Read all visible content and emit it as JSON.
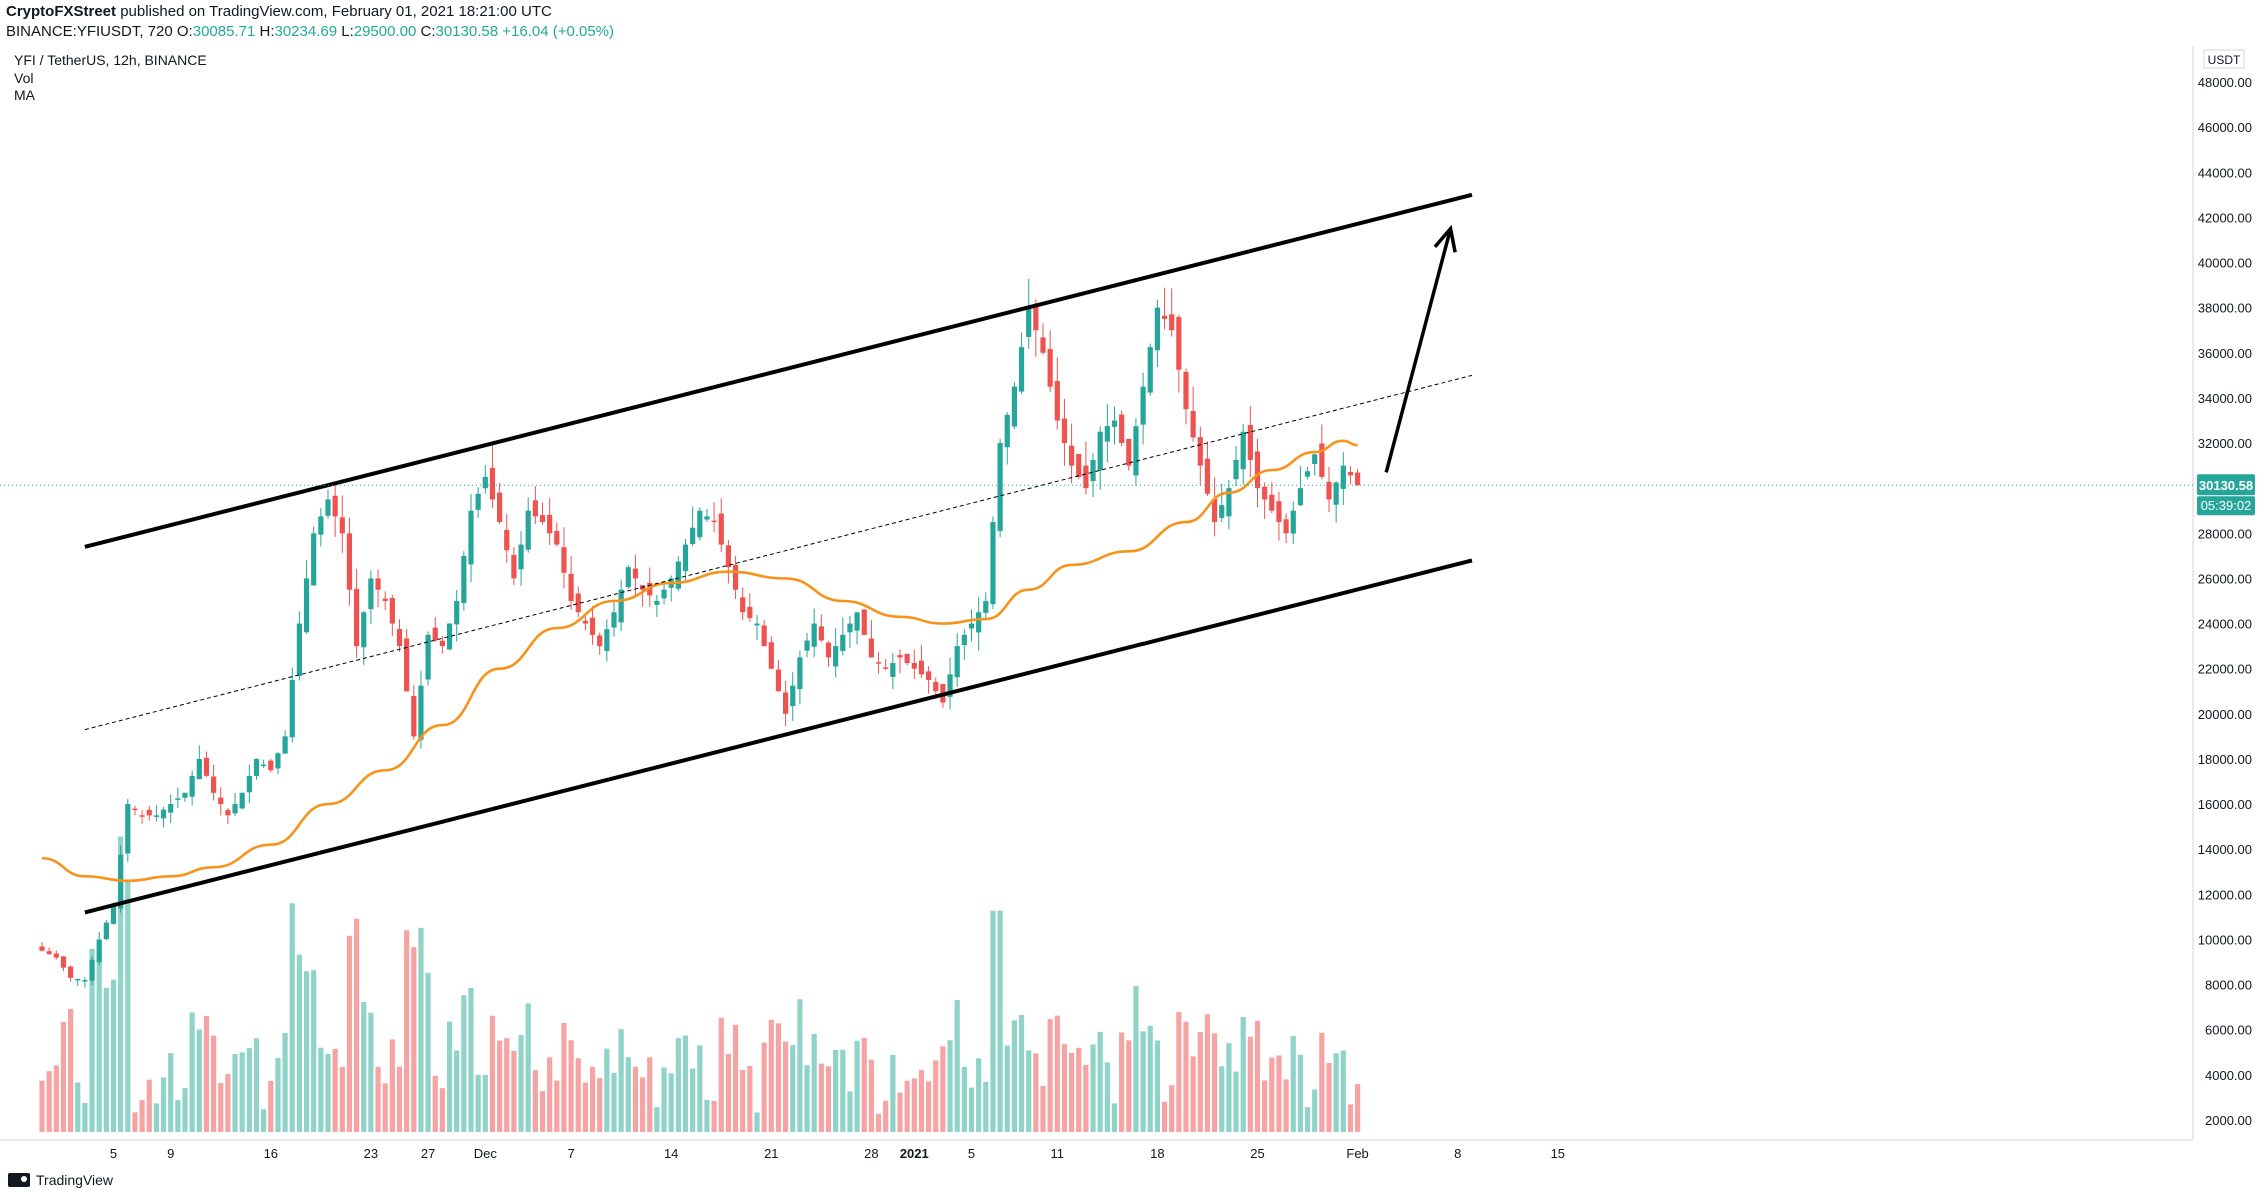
{
  "header": {
    "author": "CryptoFXStreet",
    "published_text": "published on TradingView.com, February 01, 2021 18:21:00 UTC",
    "symbol": "BINANCE:YFIUSDT, 720",
    "ohlc": {
      "o_label": "O:",
      "o": "30085.71",
      "h_label": "H:",
      "h": "30234.69",
      "l_label": "L:",
      "l": "29500.00",
      "c_label": "C:",
      "c": "30130.58",
      "change": "+16.04 (+0.05%)"
    },
    "pair_title": "YFI / TetherUS, 12h, BINANCE",
    "indicator_vol": "Vol",
    "indicator_ma": "MA"
  },
  "footer": {
    "brand": "TradingView"
  },
  "colors": {
    "up": "#26a69a",
    "down": "#ef5350",
    "vol_up": "#8fd3c9",
    "vol_down": "#f5a3a3",
    "ma": "#f7931a",
    "trend": "#000000",
    "price_line": "#22ab94"
  },
  "chart_data": {
    "type": "candlestick",
    "currency_label": "USDT",
    "price_label": "30130.58",
    "countdown_label": "05:39:02",
    "ylim": [
      0,
      50000
    ],
    "y_ticks": [
      "2000.00",
      "4000.00",
      "6000.00",
      "8000.00",
      "10000.00",
      "12000.00",
      "14000.00",
      "16000.00",
      "18000.00",
      "20000.00",
      "22000.00",
      "24000.00",
      "26000.00",
      "28000.00",
      "30000.00",
      "32000.00",
      "34000.00",
      "36000.00",
      "38000.00",
      "40000.00",
      "42000.00",
      "44000.00",
      "46000.00",
      "48000.00"
    ],
    "x_ticks": [
      {
        "day": 5,
        "label": "5"
      },
      {
        "day": 9,
        "label": "9"
      },
      {
        "day": 16,
        "label": "16"
      },
      {
        "day": 23,
        "label": "23"
      },
      {
        "day": 27,
        "label": "27"
      },
      {
        "day": 31,
        "label": "Dec"
      },
      {
        "day": 37,
        "label": "7"
      },
      {
        "day": 44,
        "label": "14"
      },
      {
        "day": 51,
        "label": "21"
      },
      {
        "day": 58,
        "label": "28"
      },
      {
        "day": 61,
        "label": "2021",
        "bold": true
      },
      {
        "day": 65,
        "label": "5"
      },
      {
        "day": 71,
        "label": "11"
      },
      {
        "day": 78,
        "label": "18"
      },
      {
        "day": 85,
        "label": "25"
      },
      {
        "day": 92,
        "label": "Feb"
      },
      {
        "day": 99,
        "label": "8"
      },
      {
        "day": 106,
        "label": "15"
      }
    ],
    "last_close": 30130.58,
    "price_anchors": [
      [
        0,
        9500
      ],
      [
        1,
        9200
      ],
      [
        2,
        8300
      ],
      [
        3,
        8200
      ],
      [
        4,
        10000
      ],
      [
        5,
        11500
      ],
      [
        6,
        16000
      ],
      [
        7,
        15500
      ],
      [
        8,
        15500
      ],
      [
        9,
        16000
      ],
      [
        10,
        16500
      ],
      [
        11,
        18000
      ],
      [
        12,
        16500
      ],
      [
        13,
        15500
      ],
      [
        14,
        16500
      ],
      [
        15,
        18000
      ],
      [
        16,
        17500
      ],
      [
        17,
        19000
      ],
      [
        18,
        24000
      ],
      [
        19,
        28000
      ],
      [
        20,
        29500
      ],
      [
        21,
        28000
      ],
      [
        22,
        23000
      ],
      [
        23,
        26000
      ],
      [
        24,
        25000
      ],
      [
        25,
        23000
      ],
      [
        26,
        19000
      ],
      [
        27,
        23500
      ],
      [
        28,
        23000
      ],
      [
        29,
        25000
      ],
      [
        30,
        29000
      ],
      [
        31,
        30500
      ],
      [
        32,
        28500
      ],
      [
        33,
        26000
      ],
      [
        34,
        29000
      ],
      [
        35,
        28500
      ],
      [
        36,
        27500
      ],
      [
        37,
        25000
      ],
      [
        38,
        24000
      ],
      [
        39,
        23000
      ],
      [
        40,
        24500
      ],
      [
        41,
        26500
      ],
      [
        42,
        25500
      ],
      [
        43,
        25000
      ],
      [
        44,
        26000
      ],
      [
        45,
        27500
      ],
      [
        46,
        29000
      ],
      [
        47,
        28500
      ],
      [
        48,
        26500
      ],
      [
        49,
        24500
      ],
      [
        50,
        24000
      ],
      [
        51,
        22000
      ],
      [
        52,
        20000
      ],
      [
        53,
        22500
      ],
      [
        54,
        24000
      ],
      [
        55,
        22500
      ],
      [
        56,
        23500
      ],
      [
        57,
        24500
      ],
      [
        58,
        22500
      ],
      [
        59,
        22000
      ],
      [
        60,
        22500
      ],
      [
        61,
        22000
      ],
      [
        62,
        21500
      ],
      [
        63,
        20500
      ],
      [
        64,
        23000
      ],
      [
        65,
        24000
      ],
      [
        66,
        25000
      ],
      [
        67,
        32000
      ],
      [
        68,
        34500
      ],
      [
        69,
        38000
      ],
      [
        70,
        36000
      ],
      [
        71,
        33000
      ],
      [
        72,
        31000
      ],
      [
        73,
        30000
      ],
      [
        74,
        32500
      ],
      [
        75,
        33000
      ],
      [
        76,
        31000
      ],
      [
        77,
        34500
      ],
      [
        78,
        38000
      ],
      [
        79,
        37000
      ],
      [
        80,
        33500
      ],
      [
        81,
        31000
      ],
      [
        82,
        28500
      ],
      [
        83,
        30000
      ],
      [
        84,
        32500
      ],
      [
        85,
        30000
      ],
      [
        86,
        29000
      ],
      [
        87,
        28000
      ],
      [
        88,
        30000
      ],
      [
        89,
        31500
      ],
      [
        90,
        29500
      ],
      [
        91,
        31000
      ],
      [
        92,
        30130
      ]
    ],
    "ma_anchors": [
      [
        0,
        13600
      ],
      [
        3,
        12800
      ],
      [
        6,
        12600
      ],
      [
        9,
        12800
      ],
      [
        12,
        13200
      ],
      [
        16,
        14200
      ],
      [
        20,
        16000
      ],
      [
        24,
        17500
      ],
      [
        28,
        19500
      ],
      [
        32,
        22000
      ],
      [
        36,
        23800
      ],
      [
        40,
        25000
      ],
      [
        44,
        25800
      ],
      [
        48,
        26300
      ],
      [
        52,
        26000
      ],
      [
        56,
        25000
      ],
      [
        60,
        24300
      ],
      [
        63,
        24000
      ],
      [
        66,
        24200
      ],
      [
        69,
        25500
      ],
      [
        72,
        26600
      ],
      [
        76,
        27200
      ],
      [
        80,
        28500
      ],
      [
        83,
        29800
      ],
      [
        86,
        30800
      ],
      [
        89,
        31600
      ],
      [
        91,
        32100
      ],
      [
        92,
        31900
      ]
    ],
    "trendlines": [
      {
        "name": "upper-channel",
        "from": [
          3,
          27400
        ],
        "to": [
          100,
          43000
        ],
        "width": 4
      },
      {
        "name": "lower-channel",
        "from": [
          3,
          11200
        ],
        "to": [
          100,
          26800
        ],
        "width": 4
      },
      {
        "name": "mid-channel",
        "from": [
          3,
          19300
        ],
        "to": [
          100,
          35000
        ],
        "width": 1,
        "dashed": true
      }
    ],
    "arrow": {
      "from": [
        94,
        30700
      ],
      "to": [
        98.5,
        41500
      ]
    }
  }
}
